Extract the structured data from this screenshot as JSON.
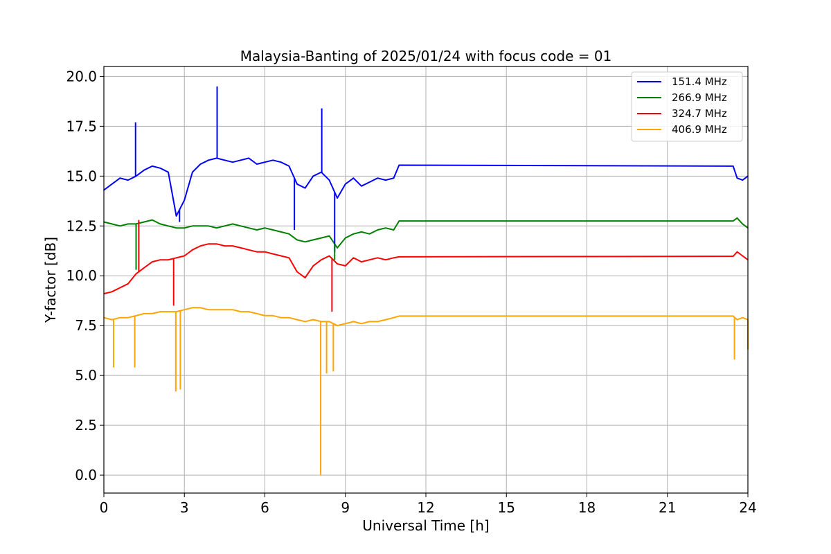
{
  "chart_data": {
    "type": "line",
    "title": "Malaysia-Banting of 2025/01/24 with focus code = 01",
    "xlabel": "Universal Time [h]",
    "ylabel": "Y-factor [dB]",
    "xlim": [
      0,
      24
    ],
    "ylim": [
      -0.9,
      20.5
    ],
    "xticks": [
      0,
      3,
      6,
      9,
      12,
      15,
      18,
      21,
      24
    ],
    "xtick_labels": [
      "0",
      "3",
      "6",
      "9",
      "12",
      "15",
      "18",
      "21",
      "24"
    ],
    "yticks": [
      0.0,
      2.5,
      5.0,
      7.5,
      10.0,
      12.5,
      15.0,
      17.5,
      20.0
    ],
    "ytick_labels": [
      "0.0",
      "2.5",
      "5.0",
      "7.5",
      "10.0",
      "12.5",
      "15.0",
      "17.5",
      "20.0"
    ],
    "grid": true,
    "legend_position": "top-right",
    "series": [
      {
        "name": "151.4 MHz",
        "color": "#0000ff",
        "x": [
          0.0,
          0.3,
          0.6,
          0.9,
          1.2,
          1.5,
          1.8,
          2.1,
          2.4,
          2.7,
          3.0,
          3.3,
          3.6,
          3.9,
          4.2,
          4.5,
          4.8,
          5.1,
          5.4,
          5.7,
          6.0,
          6.3,
          6.6,
          6.9,
          7.2,
          7.5,
          7.8,
          8.1,
          8.4,
          8.7,
          9.0,
          9.3,
          9.6,
          9.9,
          10.2,
          10.5,
          10.8,
          11.0,
          23.45,
          23.6,
          23.8,
          24.0
        ],
        "y": [
          14.3,
          14.6,
          14.9,
          14.8,
          15.0,
          15.3,
          15.5,
          15.4,
          15.2,
          13.0,
          13.8,
          15.2,
          15.6,
          15.8,
          15.9,
          15.8,
          15.7,
          15.8,
          15.9,
          15.6,
          15.7,
          15.8,
          15.7,
          15.5,
          14.6,
          14.4,
          15.0,
          15.2,
          14.8,
          13.9,
          14.6,
          14.9,
          14.5,
          14.7,
          14.9,
          14.8,
          14.9,
          15.55,
          15.5,
          14.9,
          14.8,
          15.0
        ]
      },
      {
        "name": "266.9 MHz",
        "color": "#008000",
        "x": [
          0.0,
          0.3,
          0.6,
          0.9,
          1.2,
          1.5,
          1.8,
          2.1,
          2.4,
          2.7,
          3.0,
          3.3,
          3.6,
          3.9,
          4.2,
          4.5,
          4.8,
          5.1,
          5.4,
          5.7,
          6.0,
          6.3,
          6.6,
          6.9,
          7.2,
          7.5,
          7.8,
          8.1,
          8.4,
          8.7,
          9.0,
          9.3,
          9.6,
          9.9,
          10.2,
          10.5,
          10.8,
          11.0,
          23.45,
          23.6,
          23.8,
          24.0
        ],
        "y": [
          12.7,
          12.6,
          12.5,
          12.6,
          12.6,
          12.7,
          12.8,
          12.6,
          12.5,
          12.4,
          12.4,
          12.5,
          12.5,
          12.5,
          12.4,
          12.5,
          12.6,
          12.5,
          12.4,
          12.3,
          12.4,
          12.3,
          12.2,
          12.1,
          11.8,
          11.7,
          11.8,
          11.9,
          12.0,
          11.4,
          11.9,
          12.1,
          12.2,
          12.1,
          12.3,
          12.4,
          12.3,
          12.75,
          12.75,
          12.9,
          12.6,
          12.4
        ]
      },
      {
        "name": "324.7 MHz",
        "color": "#ff0000",
        "x": [
          0.0,
          0.3,
          0.6,
          0.9,
          1.2,
          1.5,
          1.8,
          2.1,
          2.4,
          2.7,
          3.0,
          3.3,
          3.6,
          3.9,
          4.2,
          4.5,
          4.8,
          5.1,
          5.4,
          5.7,
          6.0,
          6.3,
          6.6,
          6.9,
          7.2,
          7.5,
          7.8,
          8.1,
          8.4,
          8.7,
          9.0,
          9.3,
          9.6,
          9.9,
          10.2,
          10.5,
          10.8,
          11.0,
          23.45,
          23.6,
          23.8,
          24.0
        ],
        "y": [
          9.1,
          9.2,
          9.4,
          9.6,
          10.1,
          10.4,
          10.7,
          10.8,
          10.8,
          10.9,
          11.0,
          11.3,
          11.5,
          11.6,
          11.6,
          11.5,
          11.5,
          11.4,
          11.3,
          11.2,
          11.2,
          11.1,
          11.0,
          10.9,
          10.2,
          9.9,
          10.5,
          10.8,
          11.0,
          10.6,
          10.5,
          10.9,
          10.7,
          10.8,
          10.9,
          10.8,
          10.9,
          10.95,
          10.98,
          11.2,
          11.0,
          10.8
        ]
      },
      {
        "name": "406.9 MHz",
        "color": "#ffa500",
        "x": [
          0.0,
          0.3,
          0.6,
          0.9,
          1.2,
          1.5,
          1.8,
          2.1,
          2.4,
          2.7,
          3.0,
          3.3,
          3.6,
          3.9,
          4.2,
          4.5,
          4.8,
          5.1,
          5.4,
          5.7,
          6.0,
          6.3,
          6.6,
          6.9,
          7.2,
          7.5,
          7.8,
          8.1,
          8.4,
          8.7,
          9.0,
          9.3,
          9.6,
          9.9,
          10.2,
          10.5,
          10.8,
          11.0,
          23.45,
          23.6,
          23.8,
          24.0
        ],
        "y": [
          7.9,
          7.8,
          7.9,
          7.9,
          8.0,
          8.1,
          8.1,
          8.2,
          8.2,
          8.2,
          8.3,
          8.4,
          8.4,
          8.3,
          8.3,
          8.3,
          8.3,
          8.2,
          8.2,
          8.1,
          8.0,
          8.0,
          7.9,
          7.9,
          7.8,
          7.7,
          7.8,
          7.7,
          7.7,
          7.5,
          7.6,
          7.7,
          7.6,
          7.7,
          7.7,
          7.8,
          7.9,
          7.98,
          7.98,
          7.8,
          7.9,
          7.8
        ]
      }
    ],
    "spikes": [
      {
        "series": "151.4 MHz",
        "x": 4.22,
        "y": 19.5
      },
      {
        "series": "151.4 MHz",
        "x": 8.12,
        "y": 18.4
      },
      {
        "series": "151.4 MHz",
        "x": 1.18,
        "y": 17.7
      },
      {
        "series": "151.4 MHz",
        "x": 2.82,
        "y": 12.7
      },
      {
        "series": "151.4 MHz",
        "x": 7.1,
        "y": 12.3
      },
      {
        "series": "151.4 MHz",
        "x": 8.6,
        "y": 11.2
      },
      {
        "series": "266.9 MHz",
        "x": 1.2,
        "y": 10.3
      },
      {
        "series": "266.9 MHz",
        "x": 8.6,
        "y": 10.8
      },
      {
        "series": "324.7 MHz",
        "x": 1.3,
        "y": 12.8
      },
      {
        "series": "324.7 MHz",
        "x": 2.6,
        "y": 8.5
      },
      {
        "series": "324.7 MHz",
        "x": 8.5,
        "y": 8.2
      },
      {
        "series": "406.9 MHz",
        "x": 8.08,
        "y": 0.0
      },
      {
        "series": "406.9 MHz",
        "x": 2.68,
        "y": 4.2
      },
      {
        "series": "406.9 MHz",
        "x": 2.85,
        "y": 4.3
      },
      {
        "series": "406.9 MHz",
        "x": 0.36,
        "y": 5.4
      },
      {
        "series": "406.9 MHz",
        "x": 1.15,
        "y": 5.4
      },
      {
        "series": "406.9 MHz",
        "x": 8.55,
        "y": 5.2
      },
      {
        "series": "406.9 MHz",
        "x": 8.3,
        "y": 5.1
      },
      {
        "series": "406.9 MHz",
        "x": 23.5,
        "y": 5.8
      },
      {
        "series": "406.9 MHz",
        "x": 24.0,
        "y": 6.3
      }
    ]
  }
}
